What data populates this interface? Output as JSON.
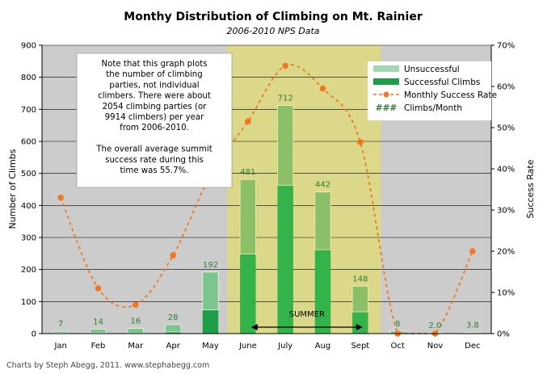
{
  "chart_data": {
    "type": "bar",
    "title": "Monthy Distribution of Climbing on Mt. Rainier",
    "subtitle": "2006-2010 NPS Data",
    "ylabel": "Number of Climbs",
    "y2label": "Success Rate",
    "xlabel": "",
    "ylim": [
      0,
      900
    ],
    "y2lim": [
      0,
      70
    ],
    "stacked": true,
    "grid": true,
    "legend_position": "top-right",
    "categories": [
      "Jan",
      "Feb",
      "Mar",
      "Apr",
      "May",
      "June",
      "July",
      "Aug",
      "Sept",
      "Oct",
      "Nov",
      "Dec"
    ],
    "y_ticks": [
      "0",
      "100",
      "200",
      "300",
      "400",
      "500",
      "600",
      "700",
      "800",
      "900"
    ],
    "y2_ticks": [
      "0%",
      "10%",
      "20%",
      "30%",
      "40%",
      "50%",
      "60%",
      "70%"
    ],
    "series": [
      {
        "name": "Unsuccessful",
        "values": [
          5,
          12,
          15,
          23,
          118,
          233,
          249,
          180,
          80,
          8,
          2.0,
          3.0
        ],
        "color": "#7cc58f"
      },
      {
        "name": "Successful Climbs",
        "values": [
          2,
          2,
          1,
          5,
          74,
          248,
          463,
          262,
          68,
          0,
          0,
          0.8
        ],
        "color": "#1e9e48"
      },
      {
        "name": "Monthly Success Rate",
        "type": "line",
        "axis": "y2",
        "values": [
          33,
          11,
          7,
          19,
          38.5,
          51.5,
          65,
          59.5,
          46.5,
          0,
          0,
          20
        ],
        "color": "#f07820"
      }
    ],
    "totals": [
      7,
      14,
      16,
      28,
      192,
      481,
      712,
      442,
      148,
      8,
      2.0,
      3.8
    ],
    "total_labels": [
      "7",
      "14",
      "16",
      "28",
      "192",
      "481",
      "712",
      "442",
      "148",
      "8",
      "2.0",
      "3.8"
    ],
    "legend": [
      "Unsuccessful",
      "Successful Climbs",
      "Monthly Success Rate",
      "Climbs/Month"
    ],
    "legend_hash_symbol": "###",
    "highlight": {
      "from": "June",
      "to": "Sept",
      "label": "SUMMER",
      "color": "#dcd88a"
    },
    "note_lines": [
      "Note that this graph plots",
      "the number of  climbing",
      "parties, not individual",
      "climbers. There were about",
      "2054 climbing parties (or",
      "9914 climbers) per year",
      "from 2006-2010.",
      "",
      "The overall average summit",
      "success rate during this",
      "time was 55.7%."
    ],
    "credit": "Charts by Steph Abegg, 2011. www.stephabegg.com"
  }
}
